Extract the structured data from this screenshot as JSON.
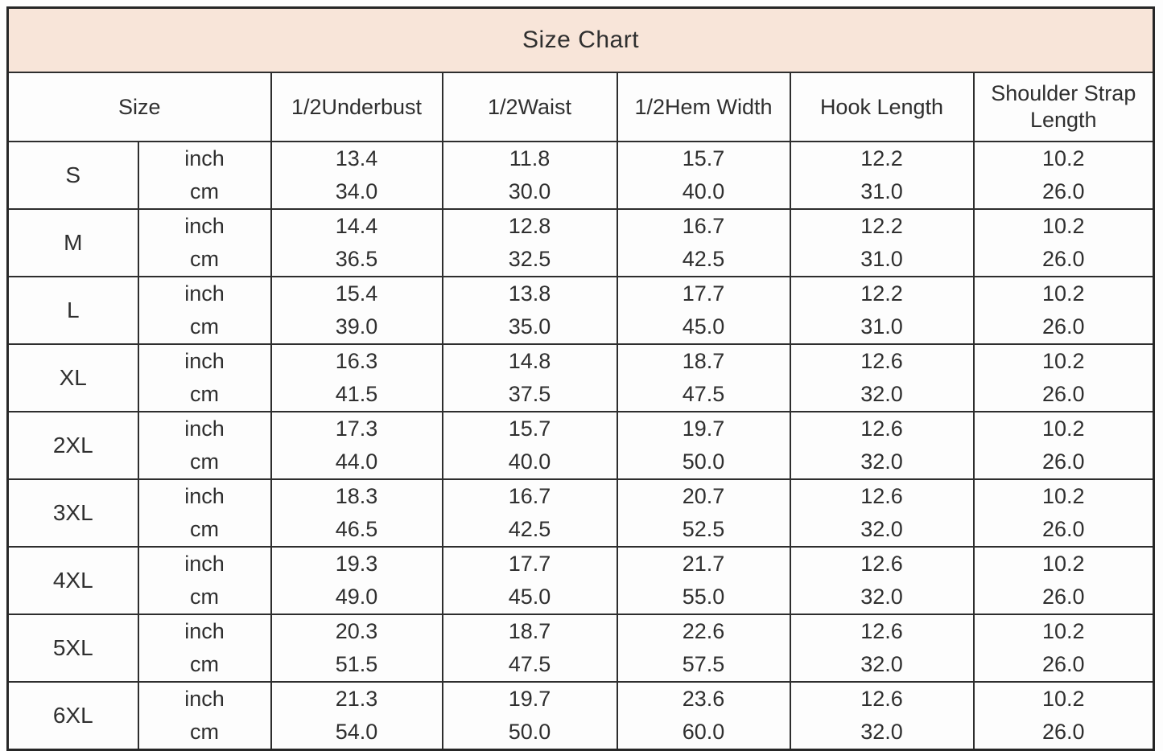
{
  "chart_data": {
    "type": "table",
    "title": "Size Chart",
    "columns": [
      "Size",
      "1/2Underbust",
      "1/2Waist",
      "1/2Hem Width",
      "Hook Length",
      "Shoulder Strap Length"
    ],
    "unit_labels": [
      "inch",
      "cm"
    ],
    "rows": [
      {
        "size": "S",
        "inch": [
          "13.4",
          "11.8",
          "15.7",
          "12.2",
          "10.2"
        ],
        "cm": [
          "34.0",
          "30.0",
          "40.0",
          "31.0",
          "26.0"
        ]
      },
      {
        "size": "M",
        "inch": [
          "14.4",
          "12.8",
          "16.7",
          "12.2",
          "10.2"
        ],
        "cm": [
          "36.5",
          "32.5",
          "42.5",
          "31.0",
          "26.0"
        ]
      },
      {
        "size": "L",
        "inch": [
          "15.4",
          "13.8",
          "17.7",
          "12.2",
          "10.2"
        ],
        "cm": [
          "39.0",
          "35.0",
          "45.0",
          "31.0",
          "26.0"
        ]
      },
      {
        "size": "XL",
        "inch": [
          "16.3",
          "14.8",
          "18.7",
          "12.6",
          "10.2"
        ],
        "cm": [
          "41.5",
          "37.5",
          "47.5",
          "32.0",
          "26.0"
        ]
      },
      {
        "size": "2XL",
        "inch": [
          "17.3",
          "15.7",
          "19.7",
          "12.6",
          "10.2"
        ],
        "cm": [
          "44.0",
          "40.0",
          "50.0",
          "32.0",
          "26.0"
        ]
      },
      {
        "size": "3XL",
        "inch": [
          "18.3",
          "16.7",
          "20.7",
          "12.6",
          "10.2"
        ],
        "cm": [
          "46.5",
          "42.5",
          "52.5",
          "32.0",
          "26.0"
        ]
      },
      {
        "size": "4XL",
        "inch": [
          "19.3",
          "17.7",
          "21.7",
          "12.6",
          "10.2"
        ],
        "cm": [
          "49.0",
          "45.0",
          "55.0",
          "32.0",
          "26.0"
        ]
      },
      {
        "size": "5XL",
        "inch": [
          "20.3",
          "18.7",
          "22.6",
          "12.6",
          "10.2"
        ],
        "cm": [
          "51.5",
          "47.5",
          "57.5",
          "32.0",
          "26.0"
        ]
      },
      {
        "size": "6XL",
        "inch": [
          "21.3",
          "19.7",
          "23.6",
          "12.6",
          "10.2"
        ],
        "cm": [
          "54.0",
          "50.0",
          "60.0",
          "32.0",
          "26.0"
        ]
      }
    ],
    "layout": {
      "grid": true,
      "title_position": "top-banner",
      "units_per_row": 2
    }
  },
  "colors": {
    "title_bg": "#f8e5d9",
    "border": "#2e2e2e",
    "text": "#2f2f2f",
    "background": "#fdfdfd"
  }
}
